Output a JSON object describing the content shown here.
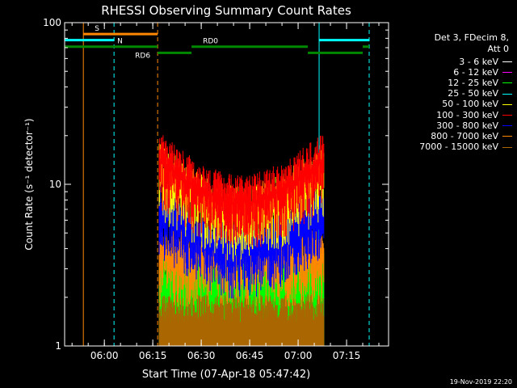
{
  "chart_data": {
    "type": "line",
    "title": "RHESSI Observing Summary Count Rates",
    "xlabel": "Start Time (07-Apr-18 05:47:42)",
    "ylabel": "Count Rate (s⁻¹ detector⁻¹)",
    "yscale": "log",
    "ylim": [
      1,
      100
    ],
    "x_start": "05:47:42",
    "x_end": "07:28:00",
    "x_ticks": [
      "06:00",
      "06:15",
      "06:30",
      "06:45",
      "07:00",
      "07:15"
    ],
    "y_ticks": [
      "1",
      "10",
      "100"
    ],
    "data_window": {
      "start": "06:17:00",
      "end": "07:08:00"
    },
    "series": [
      {
        "name": "3 - 6 keV",
        "color": "#000000",
        "level": 1.9
      },
      {
        "name": "6 - 12 keV",
        "color": "#ff00ff",
        "level": 1.9
      },
      {
        "name": "12 - 25 keV",
        "color": "#00ff00",
        "level": 2.6
      },
      {
        "name": "25 - 50 keV",
        "color": "#00ffff",
        "level": 1.5
      },
      {
        "name": "50 - 100 keV",
        "color": "#ffff00",
        "level": 12
      },
      {
        "name": "100 - 300 keV",
        "color": "#ff0000",
        "level": 14
      },
      {
        "name": "300 - 800 keV",
        "color": "#0000ff",
        "level": 7
      },
      {
        "name": "800 - 7000 keV",
        "color": "#ff8800",
        "level": 3.5
      },
      {
        "name": "7000 - 15000 keV",
        "color": "#aa6600",
        "level": 1.4
      }
    ],
    "vlines": [
      {
        "time": "05:53:30",
        "color": "#ff8800",
        "style": "solid"
      },
      {
        "time": "06:03:00",
        "color": "#00ffff",
        "style": "dashed"
      },
      {
        "time": "06:16:30",
        "color": "#ff8800",
        "style": "dashed"
      },
      {
        "time": "07:06:30",
        "color": "#00ffff",
        "style": "solid"
      },
      {
        "time": "07:22:00",
        "color": "#00ffff",
        "style": "dashed"
      }
    ],
    "flag_bars": [
      {
        "label": "S",
        "color": "#ff8800",
        "start": "05:53:30",
        "end": "06:16:30",
        "level": 85
      },
      {
        "label": "N",
        "color": "#00ffff",
        "start": "05:47:42",
        "end": "06:03:00",
        "level": 78
      },
      {
        "label": "",
        "color": "#00ffff",
        "start": "07:06:30",
        "end": "07:22:00",
        "level": 78
      },
      {
        "label": "",
        "color": "#008800",
        "start": "05:47:42",
        "end": "06:16:30",
        "level": 71
      },
      {
        "label": "RD0",
        "color": "#008800",
        "start": "06:27:00",
        "end": "07:03:00",
        "level": 71
      },
      {
        "label": "",
        "color": "#008800",
        "start": "07:20:00",
        "end": "07:22:00",
        "level": 71
      },
      {
        "label": "RD6",
        "color": "#008800",
        "start": "06:16:30",
        "end": "06:27:00",
        "level": 65
      },
      {
        "label": "",
        "color": "#008800",
        "start": "07:03:00",
        "end": "07:20:00",
        "level": 65
      }
    ]
  },
  "legend": {
    "header_line1": "Det 3, FDecim 8,",
    "header_line2": "Att 0"
  },
  "footer": {
    "timestamp": "19-Nov-2019 22:20"
  }
}
